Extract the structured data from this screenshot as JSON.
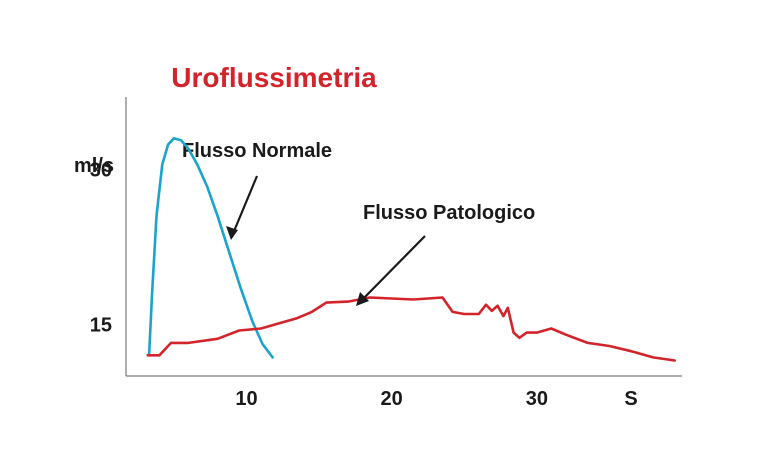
{
  "chart_data": {
    "type": "line",
    "title": "Uroflussimetria",
    "ylabel": "ml/s",
    "xlabel": "S",
    "xlim": [
      1.7,
      40
    ],
    "ylim": [
      10,
      37
    ],
    "x_ticks": [
      "10",
      "20",
      "30"
    ],
    "x_tick_values": [
      10,
      20,
      30
    ],
    "y_ticks": [
      "15",
      "30"
    ],
    "y_tick_values": [
      15,
      30
    ],
    "grid": false,
    "series": [
      {
        "name": "Flusso Normale",
        "color": "#1ba3cc",
        "x": [
          3.3,
          3.5,
          3.8,
          4.2,
          4.6,
          5.0,
          5.5,
          6.0,
          6.6,
          7.3,
          8.0,
          8.8,
          9.6,
          10.4,
          11.1,
          11.8
        ],
        "y": [
          12.2,
          18.0,
          25.5,
          30.5,
          32.4,
          33.0,
          32.8,
          32.0,
          30.5,
          28.3,
          25.5,
          22.0,
          18.5,
          15.3,
          13.1,
          11.8
        ]
      },
      {
        "name": "Flusso Patologico",
        "color": "#d3242c",
        "x": [
          3.2,
          4.0,
          4.8,
          6.0,
          8.0,
          9.5,
          11.0,
          12.5,
          13.5,
          14.5,
          15.5,
          17.0,
          18.5,
          20.0,
          21.5,
          23.5,
          24.2,
          25.0,
          26.0,
          26.5,
          26.9,
          27.3,
          27.7,
          28.0,
          28.4,
          28.8,
          29.3,
          30.0,
          31.0,
          32.0,
          33.5,
          35.0,
          36.5,
          38.0,
          39.5
        ],
        "y": [
          12.0,
          12.0,
          13.2,
          13.2,
          13.6,
          14.4,
          14.6,
          15.2,
          15.6,
          16.2,
          17.1,
          17.2,
          17.6,
          17.5,
          17.4,
          17.6,
          16.2,
          16.0,
          16.0,
          16.9,
          16.3,
          16.8,
          15.8,
          16.6,
          14.2,
          13.7,
          14.2,
          14.2,
          14.6,
          14.0,
          13.2,
          12.9,
          12.4,
          11.8,
          11.5
        ]
      }
    ],
    "annotations": [
      {
        "text": "Flusso Normale",
        "target_series": "Flusso Normale"
      },
      {
        "text": "Flusso Patologico",
        "target_series": "Flusso Patologico"
      }
    ]
  }
}
